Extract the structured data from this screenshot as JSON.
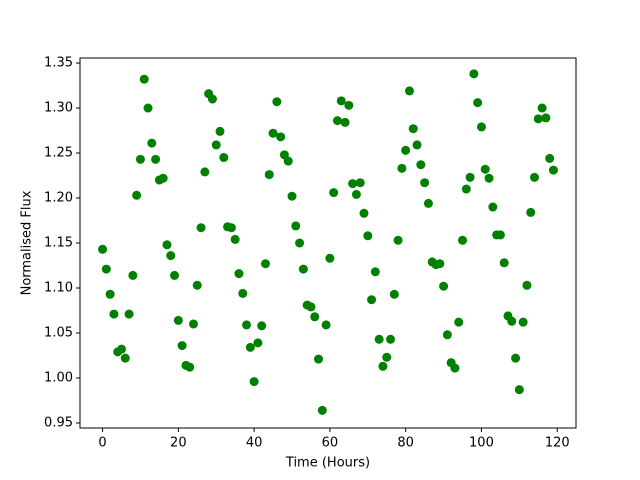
{
  "chart_data": {
    "type": "scatter",
    "x_label": "Time (Hours)",
    "y_label": "Normalised Flux",
    "color": "#008000",
    "x": [
      0,
      1,
      2,
      3,
      4,
      5,
      6,
      7,
      8,
      9,
      10,
      11,
      12,
      13,
      14,
      15,
      16,
      17,
      18,
      19,
      20,
      21,
      22,
      23,
      24,
      25,
      26,
      27,
      28,
      29,
      30,
      31,
      32,
      33,
      34,
      35,
      36,
      37,
      38,
      39,
      40,
      41,
      42,
      43,
      44,
      45,
      46,
      47,
      48,
      49,
      50,
      51,
      52,
      53,
      54,
      55,
      56,
      57,
      58,
      59,
      60,
      61,
      62,
      63,
      64,
      65,
      66,
      67,
      68,
      69,
      70,
      71,
      72,
      73,
      74,
      75,
      76,
      77,
      78,
      79,
      80,
      81,
      82,
      83,
      84,
      85,
      86,
      87,
      88,
      89,
      90,
      91,
      92,
      93,
      94,
      95,
      96,
      97,
      98,
      99,
      100,
      101,
      102,
      103,
      104,
      105,
      106,
      107,
      108,
      109,
      110,
      111,
      112,
      113,
      114,
      115,
      116,
      117,
      118,
      119
    ],
    "values": [
      1.143,
      1.121,
      1.093,
      1.071,
      1.029,
      1.032,
      1.022,
      1.071,
      1.114,
      1.203,
      1.243,
      1.332,
      1.3,
      1.261,
      1.243,
      1.22,
      1.222,
      1.148,
      1.136,
      1.114,
      1.064,
      1.036,
      1.014,
      1.012,
      1.06,
      1.103,
      1.167,
      1.229,
      1.316,
      1.31,
      1.259,
      1.274,
      1.245,
      1.168,
      1.167,
      1.154,
      1.116,
      1.094,
      1.059,
      1.034,
      0.996,
      1.039,
      1.058,
      1.127,
      1.226,
      1.272,
      1.307,
      1.268,
      1.248,
      1.241,
      1.202,
      1.169,
      1.15,
      1.121,
      1.081,
      1.079,
      1.068,
      1.021,
      0.964,
      1.059,
      1.133,
      1.206,
      1.286,
      1.308,
      1.284,
      1.303,
      1.216,
      1.204,
      1.217,
      1.183,
      1.158,
      1.087,
      1.118,
      1.043,
      1.013,
      1.023,
      1.043,
      1.093,
      1.153,
      1.233,
      1.253,
      1.319,
      1.277,
      1.259,
      1.237,
      1.217,
      1.194,
      1.129,
      1.126,
      1.127,
      1.102,
      1.048,
      1.017,
      1.011,
      1.062,
      1.153,
      1.21,
      1.223,
      1.338,
      1.306,
      1.279,
      1.232,
      1.222,
      1.19,
      1.159,
      1.159,
      1.128,
      1.069,
      1.063,
      1.022,
      0.987,
      1.062,
      1.103,
      1.184,
      1.223,
      1.288,
      1.3,
      1.289,
      1.244,
      1.231
    ],
    "xlim": [
      -5.95,
      124.95
    ],
    "ylim": [
      0.9444,
      1.3556
    ],
    "xticks": [
      0,
      20,
      40,
      60,
      80,
      100,
      120
    ],
    "yticks": [
      0.95,
      {
        "value": 1.0,
        "label": "1.00"
      },
      1.05,
      {
        "value": 1.1,
        "label": "1.10"
      },
      1.15,
      {
        "value": 1.2,
        "label": "1.20"
      },
      1.25,
      {
        "value": 1.3,
        "label": "1.30"
      },
      1.35
    ]
  }
}
